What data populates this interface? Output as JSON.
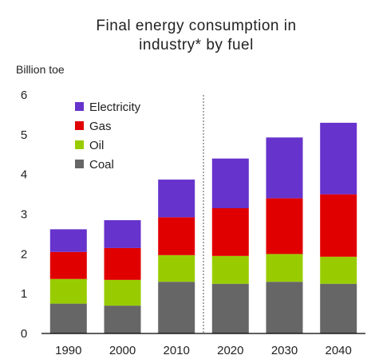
{
  "chart_data": {
    "type": "bar",
    "stacked": true,
    "title": [
      "Final energy consumption in",
      "industry* by fuel"
    ],
    "unit_label": "Billion toe",
    "xlabel": "",
    "ylabel": "",
    "ylim": [
      0,
      6
    ],
    "y_ticks": [
      0,
      1,
      2,
      3,
      4,
      5,
      6
    ],
    "grid": false,
    "legend_position": "top-left",
    "divider_between": [
      "2010",
      "2020"
    ],
    "categories": [
      "1990",
      "2000",
      "2010",
      "2020",
      "2030",
      "2040"
    ],
    "series": [
      {
        "name": "Coal",
        "color": "#666666",
        "values": [
          0.75,
          0.7,
          1.3,
          1.25,
          1.3,
          1.25
        ]
      },
      {
        "name": "Oil",
        "color": "#99cc00",
        "values": [
          0.62,
          0.65,
          0.67,
          0.7,
          0.7,
          0.68
        ]
      },
      {
        "name": "Gas",
        "color": "#e00000",
        "values": [
          0.68,
          0.8,
          0.95,
          1.2,
          1.4,
          1.57
        ]
      },
      {
        "name": "Electricity",
        "color": "#6633cc",
        "values": [
          0.57,
          0.7,
          0.95,
          1.25,
          1.53,
          1.8
        ]
      }
    ],
    "legend_order": [
      "Electricity",
      "Gas",
      "Oil",
      "Coal"
    ]
  }
}
